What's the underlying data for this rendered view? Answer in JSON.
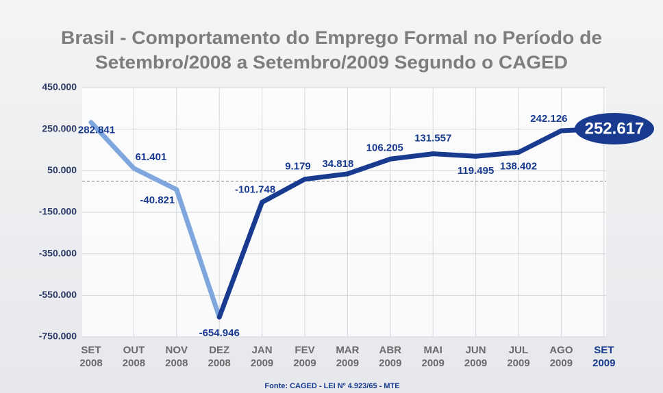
{
  "chart_data": {
    "type": "line",
    "title": [
      "Brasil - Comportamento do Emprego Formal no Período de",
      "Setembro/2008 a Setembro/2009 Segundo o CAGED"
    ],
    "categories": [
      "SET 2008",
      "OUT 2008",
      "NOV 2008",
      "DEZ 2008",
      "JAN 2009",
      "FEV 2009",
      "MAR 2009",
      "ABR 2009",
      "MAI 2009",
      "JUN 2009",
      "JUL 2009",
      "AGO 2009",
      "SET 2009"
    ],
    "values": [
      282841,
      61401,
      -40821,
      -654946,
      -101748,
      9179,
      34818,
      106205,
      131557,
      119495,
      138402,
      242126,
      252617
    ],
    "value_labels": [
      "282.841",
      "61.401",
      "-40.821",
      "-654.946",
      "-101.748",
      "9.179",
      "34.818",
      "106.205",
      "131.557",
      "119.495",
      "138.402",
      "242.126",
      "252.617"
    ],
    "colors": [
      "#7fa7dd",
      "#7fa7dd",
      "#7fa7dd",
      "#183b8f",
      "#183b8f",
      "#183b8f",
      "#183b8f",
      "#183b8f",
      "#183b8f",
      "#183b8f",
      "#183b8f",
      "#183b8f",
      "#183b8f"
    ],
    "ylim": [
      -750000,
      450000
    ],
    "yticks": [
      {
        "value": 450000,
        "label": "450.000"
      },
      {
        "value": 250000,
        "label": "250.000"
      },
      {
        "value": 50000,
        "label": "50.000"
      },
      {
        "value": -150000,
        "label": "-150.000"
      },
      {
        "value": -350000,
        "label": "-350.000"
      },
      {
        "value": -550000,
        "label": "-550.000"
      },
      {
        "value": -750000,
        "label": "-750.000"
      }
    ],
    "grid": true,
    "zero_line": true,
    "source": "Fonte: CAGED - LEI Nº 4.923/65 - MTE"
  }
}
